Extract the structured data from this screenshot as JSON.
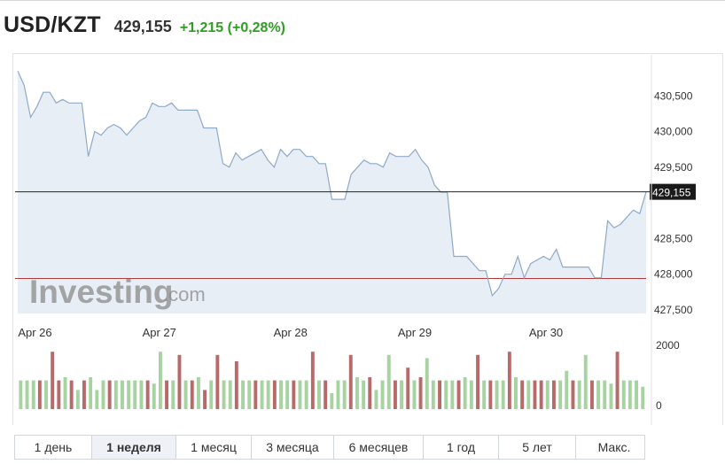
{
  "header": {
    "pair": "USD/KZT",
    "price": "429,155",
    "change": "+1,215 (+0,28%)"
  },
  "colors": {
    "area_fill": "#e8eef5",
    "line": "#8fa9c9",
    "ref_line": "#222222",
    "prev_close_line": "#b03a3a",
    "vol_up": "#a6d3a0",
    "vol_down": "#b86a6a",
    "change_positive": "#2e9e22"
  },
  "watermark": {
    "text_main": "Investing",
    "text_suffix": ".com"
  },
  "tabs": [
    "1 день",
    "1 неделя",
    "1 месяц",
    "3 месяца",
    "6 месяцев",
    "1 год",
    "5 лет",
    "Макс."
  ],
  "active_tab": "1 неделя",
  "chart_data": {
    "type": "line",
    "title": "USD/KZT",
    "xlabel": "",
    "ylabel": "",
    "x_ticks": [
      "Apr 26",
      "Apr 27",
      "Apr 28",
      "Apr 29",
      "Apr 30"
    ],
    "x_tick_positions": [
      2.5,
      20.5,
      39.5,
      57.5,
      76.5
    ],
    "y_ticks": [
      "430,500",
      "430,000",
      "429,500",
      "428,500",
      "428,000",
      "427,500"
    ],
    "y_tick_values": [
      430.5,
      430.0,
      429.5,
      428.5,
      428.0,
      427.5
    ],
    "ylim": [
      427.45,
      430.95
    ],
    "xlim": [
      0,
      91
    ],
    "last_value_label": "429,155",
    "last_value": 429.155,
    "prev_close": 427.94,
    "series": [
      {
        "values": [
          430.85,
          430.65,
          430.2,
          430.35,
          430.55,
          430.55,
          430.4,
          430.45,
          430.4,
          430.4,
          430.4,
          429.65,
          430.0,
          429.95,
          430.05,
          430.1,
          430.05,
          429.95,
          430.05,
          430.15,
          430.2,
          430.4,
          430.35,
          430.35,
          430.4,
          430.3,
          430.3,
          430.3,
          430.3,
          430.05,
          430.05,
          430.05,
          429.55,
          429.5,
          429.7,
          429.6,
          429.65,
          429.7,
          429.75,
          429.6,
          429.5,
          429.75,
          429.65,
          429.75,
          429.75,
          429.65,
          429.65,
          429.55,
          429.55,
          429.05,
          429.05,
          429.05,
          429.4,
          429.5,
          429.6,
          429.55,
          429.55,
          429.5,
          429.7,
          429.65,
          429.65,
          429.65,
          429.75,
          429.6,
          429.5,
          429.25,
          429.15,
          429.15,
          428.25,
          428.25,
          428.25,
          428.15,
          428.05,
          428.05,
          427.7,
          427.8,
          428.0,
          428.0,
          428.25,
          427.95,
          428.15,
          428.2,
          428.25,
          428.2,
          428.35,
          428.1,
          428.1,
          428.1,
          428.1,
          428.1,
          427.95,
          427.95,
          428.75,
          428.65,
          428.7,
          428.8,
          428.9,
          428.85,
          429.155
        ]
      }
    ],
    "volume": {
      "ylabel_ticks": [
        "2000",
        "0"
      ],
      "ylim": [
        0,
        2000
      ],
      "values": [
        900,
        900,
        900,
        900,
        900,
        1800,
        900,
        1000,
        900,
        600,
        900,
        1000,
        600,
        900,
        900,
        900,
        900,
        900,
        900,
        900,
        900,
        800,
        1800,
        900,
        900,
        1700,
        900,
        900,
        1000,
        600,
        900,
        1700,
        900,
        900,
        1500,
        900,
        900,
        900,
        900,
        900,
        900,
        900,
        900,
        900,
        900,
        900,
        1800,
        900,
        900,
        500,
        900,
        900,
        1700,
        1000,
        900,
        1000,
        600,
        900,
        1700,
        900,
        900,
        1300,
        900,
        1000,
        1600,
        900,
        900,
        900,
        900,
        900,
        1000,
        900,
        1700,
        900,
        900,
        900,
        900,
        1800,
        1000,
        900,
        900,
        900,
        900,
        900,
        900,
        900,
        1200,
        900,
        900,
        1700,
        900,
        900,
        900,
        800,
        1800,
        900,
        900,
        900,
        700
      ],
      "up": [
        1,
        1,
        1,
        0,
        1,
        0,
        0,
        1,
        0,
        1,
        0,
        1,
        1,
        1,
        0,
        1,
        1,
        1,
        1,
        1,
        0,
        1,
        1,
        0,
        1,
        0,
        1,
        0,
        1,
        0,
        1,
        0,
        1,
        1,
        0,
        1,
        1,
        0,
        1,
        1,
        0,
        1,
        1,
        0,
        1,
        1,
        0,
        1,
        0,
        1,
        1,
        1,
        0,
        1,
        1,
        0,
        1,
        1,
        1,
        0,
        1,
        0,
        1,
        0,
        1,
        1,
        0,
        1,
        1,
        0,
        1,
        1,
        0,
        1,
        0,
        1,
        1,
        0,
        1,
        0,
        1,
        0,
        0,
        1,
        0,
        1,
        1,
        0,
        1,
        1,
        0,
        1,
        1,
        1,
        0,
        1,
        1,
        1,
        1
      ]
    }
  }
}
